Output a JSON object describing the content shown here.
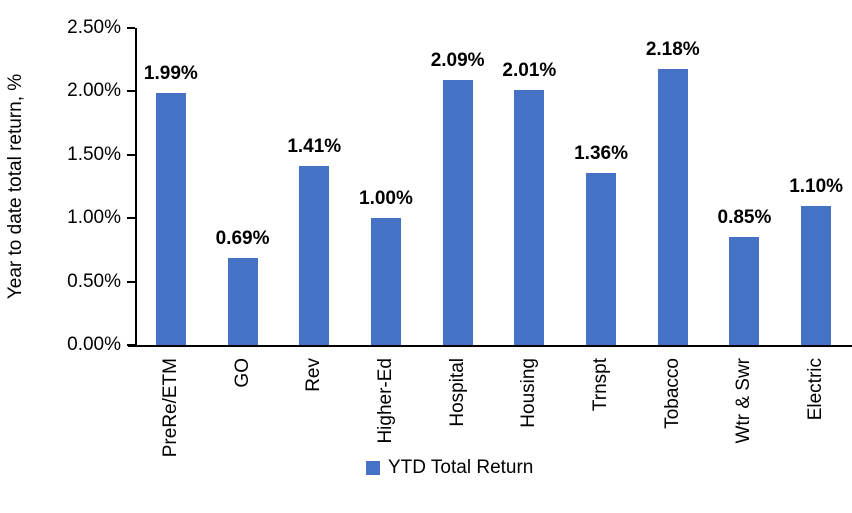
{
  "chart_data": {
    "type": "bar",
    "title": "",
    "xlabel": "",
    "ylabel": "Year to date total return, %",
    "categories": [
      "PreRe/ETM",
      "GO",
      "Rev",
      "Higher-Ed",
      "Hospital",
      "Housing",
      "Trnspt",
      "Tobacco",
      "Wtr & Swr",
      "Electric"
    ],
    "values": [
      1.99,
      0.69,
      1.41,
      1.0,
      2.09,
      2.01,
      1.36,
      2.18,
      0.85,
      1.1
    ],
    "value_labels": [
      "1.99%",
      "0.69%",
      "1.41%",
      "1.00%",
      "2.09%",
      "2.01%",
      "1.36%",
      "2.18%",
      "0.85%",
      "1.10%"
    ],
    "y_ticks": [
      {
        "value": 0.0,
        "label": "0.00%"
      },
      {
        "value": 0.5,
        "label": "0.50%"
      },
      {
        "value": 1.0,
        "label": "1.00%"
      },
      {
        "value": 1.5,
        "label": "1.50%"
      },
      {
        "value": 2.0,
        "label": "2.00%"
      },
      {
        "value": 2.5,
        "label": "2.50%"
      }
    ],
    "ylim": [
      0,
      2.5
    ],
    "grid": false,
    "legend_position": "bottom",
    "series_name": "YTD Total Return",
    "bar_color": "#4472C4",
    "axis_color": "#000000"
  }
}
